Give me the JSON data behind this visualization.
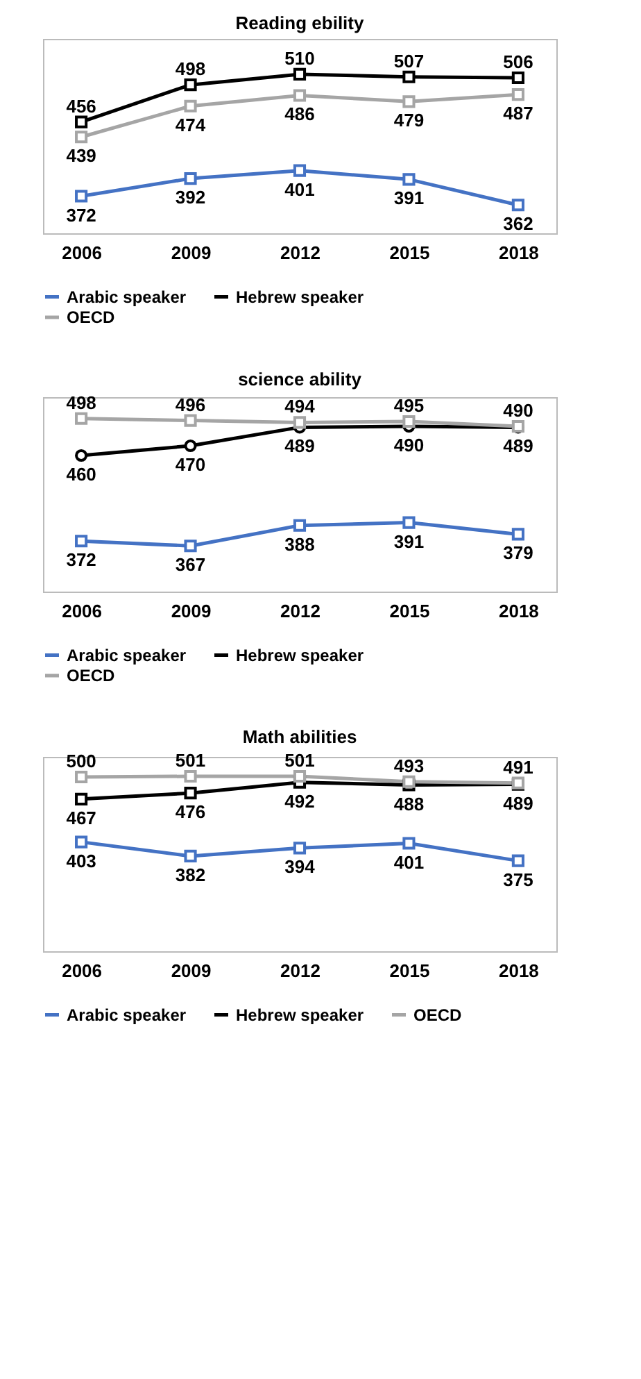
{
  "chart_data": [
    {
      "type": "line",
      "title": "Reading ebility",
      "categories": [
        "2006",
        "2009",
        "2012",
        "2015",
        "2018"
      ],
      "ylim": [
        330,
        550
      ],
      "tick_labels": "x",
      "data_labels": true,
      "legend": "bottom",
      "grid": false,
      "marker": "square",
      "series": [
        {
          "name": "Arabic speaker",
          "color": "#4472c4",
          "values": [
            372,
            392,
            401,
            391,
            362
          ]
        },
        {
          "name": "Hebrew speaker",
          "color": "#000000",
          "values": [
            456,
            498,
            510,
            507,
            506
          ]
        },
        {
          "name": "OECD",
          "color": "#a5a5a5",
          "values": [
            439,
            474,
            486,
            479,
            487
          ]
        }
      ]
    },
    {
      "type": "line",
      "title": "science ability",
      "categories": [
        "2006",
        "2009",
        "2012",
        "2015",
        "2018"
      ],
      "ylim": [
        320,
        520
      ],
      "tick_labels": "x",
      "data_labels": true,
      "legend": "bottom",
      "grid": false,
      "marker": "square",
      "series": [
        {
          "name": "Arabic speaker",
          "color": "#4472c4",
          "values": [
            372,
            367,
            388,
            391,
            379
          ]
        },
        {
          "name": "Hebrew speaker",
          "color": "#000000",
          "marker": "circle",
          "values": [
            460,
            470,
            489,
            490,
            489
          ]
        },
        {
          "name": "OECD",
          "color": "#a5a5a5",
          "values": [
            498,
            496,
            494,
            495,
            490
          ]
        }
      ]
    },
    {
      "type": "line",
      "title": "Math abilities",
      "categories": [
        "2006",
        "2009",
        "2012",
        "2015",
        "2018"
      ],
      "ylim": [
        240,
        530
      ],
      "tick_labels": "x",
      "data_labels": true,
      "legend": "bottom",
      "grid": false,
      "marker": "square",
      "series": [
        {
          "name": "Arabic speaker",
          "color": "#4472c4",
          "values": [
            403,
            382,
            394,
            401,
            375
          ]
        },
        {
          "name": "Hebrew speaker",
          "color": "#000000",
          "values": [
            467,
            476,
            492,
            488,
            489
          ]
        },
        {
          "name": "OECD",
          "color": "#a5a5a5",
          "values": [
            500,
            501,
            501,
            493,
            491
          ]
        }
      ]
    }
  ]
}
